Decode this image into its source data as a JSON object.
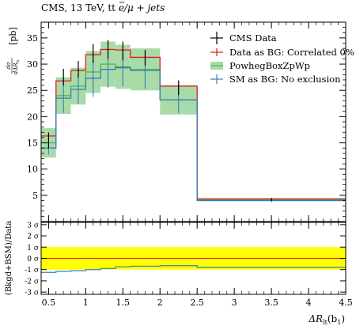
{
  "header": {
    "left_text": "CMS, 13 TeV, t",
    "tbar_t": "t",
    "right_text": " e/μ + jets"
  },
  "chart_data": [
    {
      "type": "line",
      "ylabel_fraction_num": "dσ",
      "ylabel_fraction_den": "dΔR",
      "ylabel_den_sub": "lt",
      "ylabel_unit": "[pb]",
      "x_edges": [
        0.4,
        0.6,
        0.8,
        1.0,
        1.2,
        1.4,
        1.6,
        2.0,
        2.5,
        4.5
      ],
      "xlim": [
        0.4,
        4.5
      ],
      "ylim": [
        0,
        38
      ],
      "yticks": [
        5,
        10,
        15,
        20,
        25,
        30,
        35
      ],
      "ytick_labels": [
        "5",
        "10",
        "15",
        "20",
        "25",
        "30",
        "35"
      ],
      "legend_position": "top-right",
      "series": [
        {
          "name": "CMS Data",
          "color": "#000000",
          "style": "points",
          "x": [
            0.5,
            0.7,
            0.9,
            1.1,
            1.3,
            1.5,
            1.8,
            2.25,
            3.5
          ],
          "values": [
            15.5,
            27.5,
            29.0,
            32.0,
            32.8,
            32.5,
            31.2,
            25.5,
            4.2
          ],
          "err": [
            1.5,
            1.6,
            1.6,
            1.8,
            1.8,
            1.8,
            1.5,
            1.4,
            0.3
          ]
        },
        {
          "name": "Data as BG: Correlated 0%",
          "color": "#e41a1c",
          "style": "hist",
          "values": [
            16.3,
            26.8,
            28.8,
            31.8,
            32.8,
            32.7,
            31.3,
            25.8,
            4.3
          ],
          "err": [
            0.3,
            0.3,
            0.3,
            0.3,
            0.3,
            0.3,
            0.3,
            0.3,
            0.1
          ]
        },
        {
          "name": "PowhegBoxZpWp",
          "color": "#4daf4a",
          "style": "band",
          "values": [
            15.0,
            24.0,
            25.8,
            28.5,
            30.0,
            29.5,
            29.0,
            23.2,
            4.2
          ],
          "err": [
            2.8,
            3.5,
            3.5,
            4.0,
            4.3,
            4.2,
            4.0,
            2.8,
            0.3
          ]
        },
        {
          "name": "SM as BG: No exclusion",
          "color": "#377eb8",
          "style": "hist",
          "values": [
            14.0,
            23.5,
            25.2,
            27.3,
            29.0,
            29.3,
            28.8,
            23.2,
            4.0
          ],
          "err": [
            1.2,
            2.8,
            2.8,
            3.5,
            3.5,
            3.5,
            3.5,
            2.5,
            0.3
          ]
        }
      ]
    },
    {
      "type": "line",
      "ylabel": "(Bkgd+BSM)/Data",
      "xlabel": "ΔR",
      "xlabel_sub": "lt",
      "xlabel_suffix": "(b",
      "xlabel_suffix_sub": "1",
      "xlabel_end": ")",
      "xlim": [
        0.4,
        4.5
      ],
      "xticks": [
        0.5,
        1,
        1.5,
        2,
        2.5,
        3,
        3.5,
        4,
        4.5
      ],
      "xtick_labels": [
        "0.5",
        "1",
        "1.5",
        "2",
        "2.5",
        "3",
        "3.5",
        "4",
        "4.5"
      ],
      "ylim": [
        -3.2,
        3.2
      ],
      "yticks": [
        -3,
        -2,
        -1,
        0,
        1,
        2,
        3
      ],
      "ytick_labels": [
        "-3 σ",
        "-2 σ",
        "-1 σ",
        "0 σ",
        "1 σ",
        "2 σ",
        "3 σ"
      ],
      "band_1sigma_color": "#ffff00",
      "zero_line_color": "#e41a1c",
      "series": [
        {
          "name": "SM as BG: No exclusion",
          "color": "#377eb8",
          "values": [
            -1.25,
            -1.15,
            -1.1,
            -1.0,
            -0.9,
            -0.75,
            -0.7,
            -0.65,
            -0.8
          ]
        }
      ]
    }
  ]
}
